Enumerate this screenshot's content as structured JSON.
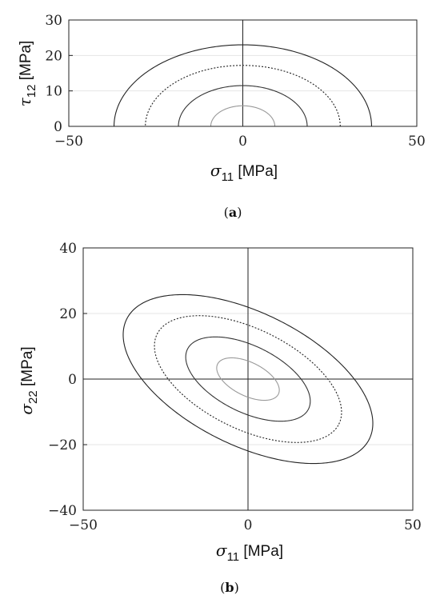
{
  "chart_data": [
    {
      "type": "line",
      "panel": "a",
      "caption_open": "(",
      "caption_letter": "a",
      "caption_close": ")",
      "xlabel": {
        "symbol": "σ",
        "sub": "11",
        "unit": " [MPa]"
      },
      "ylabel": {
        "symbol": "τ",
        "sub": "12",
        "unit": " [MPa]"
      },
      "xlim": [
        -50,
        50
      ],
      "ylim": [
        0,
        30
      ],
      "xticks": [
        -50,
        0,
        50
      ],
      "xtick_labels": [
        "−50",
        "0",
        "50"
      ],
      "yticks": [
        0,
        10,
        20,
        30
      ],
      "ytick_labels": [
        "0",
        "10",
        "20",
        "30"
      ],
      "grid": "horizontal",
      "reference_lines": {
        "x": 0
      },
      "series": [
        {
          "shape": "upper-half-ellipse",
          "cx": 0,
          "cy": 0,
          "rx": 37,
          "ry": 23,
          "style": "solid",
          "color": "#222222"
        },
        {
          "shape": "upper-half-ellipse",
          "cx": 0,
          "cy": 0,
          "rx": 28,
          "ry": 17.2,
          "style": "dotted",
          "color": "#222222"
        },
        {
          "shape": "upper-half-ellipse",
          "cx": 0,
          "cy": 0,
          "rx": 18.5,
          "ry": 11.5,
          "style": "solid",
          "color": "#333333"
        },
        {
          "shape": "upper-half-ellipse",
          "cx": 0,
          "cy": 0,
          "rx": 9.2,
          "ry": 5.8,
          "style": "solid",
          "color": "#999999"
        }
      ]
    },
    {
      "type": "line",
      "panel": "b",
      "caption_open": "(",
      "caption_letter": "b",
      "caption_close": ")",
      "xlabel": {
        "symbol": "σ",
        "sub": "11",
        "unit": " [MPa]"
      },
      "ylabel": {
        "symbol": "σ",
        "sub": "22",
        "unit": " [MPa]"
      },
      "xlim": [
        -50,
        50
      ],
      "ylim": [
        -40,
        40
      ],
      "xticks": [
        -50,
        0,
        50
      ],
      "xtick_labels": [
        "−50",
        "0",
        "50"
      ],
      "yticks": [
        -40,
        -20,
        0,
        20,
        40
      ],
      "ytick_labels": [
        "−40",
        "−20",
        "0",
        "20",
        "40"
      ],
      "grid": "horizontal",
      "reference_lines": {
        "x": 0,
        "y": 0
      },
      "series": [
        {
          "shape": "ellipse",
          "cx": 0,
          "cy": 0,
          "a": 41.1,
          "b": 20.2,
          "angle_deg": -26.5,
          "style": "solid",
          "color": "#222222"
        },
        {
          "shape": "ellipse",
          "cx": 0,
          "cy": 0,
          "a": 30.8,
          "b": 15.2,
          "angle_deg": -26.5,
          "style": "dotted",
          "color": "#222222"
        },
        {
          "shape": "ellipse",
          "cx": 0,
          "cy": 0,
          "a": 20.5,
          "b": 10.1,
          "angle_deg": -26.5,
          "style": "solid",
          "color": "#333333"
        },
        {
          "shape": "ellipse",
          "cx": 0,
          "cy": 0,
          "a": 10.3,
          "b": 5.1,
          "angle_deg": -26.5,
          "style": "solid",
          "color": "#999999"
        }
      ]
    }
  ]
}
